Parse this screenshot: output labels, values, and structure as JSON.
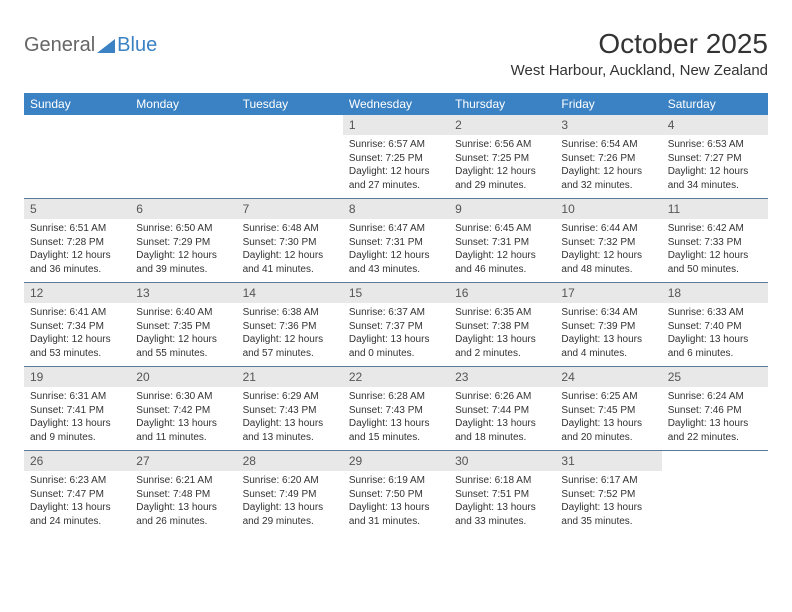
{
  "logo": {
    "general": "General",
    "blue": "Blue"
  },
  "title": "October 2025",
  "location": "West Harbour, Auckland, New Zealand",
  "colors": {
    "header_bg": "#3b82c4",
    "header_text": "#ffffff",
    "daynum_bg": "#e8e8e8",
    "body_text": "#333333",
    "logo_gray": "#666666",
    "logo_blue": "#3b82c4",
    "row_border": "#5a7a9a"
  },
  "day_headers": [
    "Sunday",
    "Monday",
    "Tuesday",
    "Wednesday",
    "Thursday",
    "Friday",
    "Saturday"
  ],
  "weeks": [
    [
      {
        "n": "",
        "sr": "",
        "ss": "",
        "dl": ""
      },
      {
        "n": "",
        "sr": "",
        "ss": "",
        "dl": ""
      },
      {
        "n": "",
        "sr": "",
        "ss": "",
        "dl": ""
      },
      {
        "n": "1",
        "sr": "6:57 AM",
        "ss": "7:25 PM",
        "dl": "12 hours and 27 minutes."
      },
      {
        "n": "2",
        "sr": "6:56 AM",
        "ss": "7:25 PM",
        "dl": "12 hours and 29 minutes."
      },
      {
        "n": "3",
        "sr": "6:54 AM",
        "ss": "7:26 PM",
        "dl": "12 hours and 32 minutes."
      },
      {
        "n": "4",
        "sr": "6:53 AM",
        "ss": "7:27 PM",
        "dl": "12 hours and 34 minutes."
      }
    ],
    [
      {
        "n": "5",
        "sr": "6:51 AM",
        "ss": "7:28 PM",
        "dl": "12 hours and 36 minutes."
      },
      {
        "n": "6",
        "sr": "6:50 AM",
        "ss": "7:29 PM",
        "dl": "12 hours and 39 minutes."
      },
      {
        "n": "7",
        "sr": "6:48 AM",
        "ss": "7:30 PM",
        "dl": "12 hours and 41 minutes."
      },
      {
        "n": "8",
        "sr": "6:47 AM",
        "ss": "7:31 PM",
        "dl": "12 hours and 43 minutes."
      },
      {
        "n": "9",
        "sr": "6:45 AM",
        "ss": "7:31 PM",
        "dl": "12 hours and 46 minutes."
      },
      {
        "n": "10",
        "sr": "6:44 AM",
        "ss": "7:32 PM",
        "dl": "12 hours and 48 minutes."
      },
      {
        "n": "11",
        "sr": "6:42 AM",
        "ss": "7:33 PM",
        "dl": "12 hours and 50 minutes."
      }
    ],
    [
      {
        "n": "12",
        "sr": "6:41 AM",
        "ss": "7:34 PM",
        "dl": "12 hours and 53 minutes."
      },
      {
        "n": "13",
        "sr": "6:40 AM",
        "ss": "7:35 PM",
        "dl": "12 hours and 55 minutes."
      },
      {
        "n": "14",
        "sr": "6:38 AM",
        "ss": "7:36 PM",
        "dl": "12 hours and 57 minutes."
      },
      {
        "n": "15",
        "sr": "6:37 AM",
        "ss": "7:37 PM",
        "dl": "13 hours and 0 minutes."
      },
      {
        "n": "16",
        "sr": "6:35 AM",
        "ss": "7:38 PM",
        "dl": "13 hours and 2 minutes."
      },
      {
        "n": "17",
        "sr": "6:34 AM",
        "ss": "7:39 PM",
        "dl": "13 hours and 4 minutes."
      },
      {
        "n": "18",
        "sr": "6:33 AM",
        "ss": "7:40 PM",
        "dl": "13 hours and 6 minutes."
      }
    ],
    [
      {
        "n": "19",
        "sr": "6:31 AM",
        "ss": "7:41 PM",
        "dl": "13 hours and 9 minutes."
      },
      {
        "n": "20",
        "sr": "6:30 AM",
        "ss": "7:42 PM",
        "dl": "13 hours and 11 minutes."
      },
      {
        "n": "21",
        "sr": "6:29 AM",
        "ss": "7:43 PM",
        "dl": "13 hours and 13 minutes."
      },
      {
        "n": "22",
        "sr": "6:28 AM",
        "ss": "7:43 PM",
        "dl": "13 hours and 15 minutes."
      },
      {
        "n": "23",
        "sr": "6:26 AM",
        "ss": "7:44 PM",
        "dl": "13 hours and 18 minutes."
      },
      {
        "n": "24",
        "sr": "6:25 AM",
        "ss": "7:45 PM",
        "dl": "13 hours and 20 minutes."
      },
      {
        "n": "25",
        "sr": "6:24 AM",
        "ss": "7:46 PM",
        "dl": "13 hours and 22 minutes."
      }
    ],
    [
      {
        "n": "26",
        "sr": "6:23 AM",
        "ss": "7:47 PM",
        "dl": "13 hours and 24 minutes."
      },
      {
        "n": "27",
        "sr": "6:21 AM",
        "ss": "7:48 PM",
        "dl": "13 hours and 26 minutes."
      },
      {
        "n": "28",
        "sr": "6:20 AM",
        "ss": "7:49 PM",
        "dl": "13 hours and 29 minutes."
      },
      {
        "n": "29",
        "sr": "6:19 AM",
        "ss": "7:50 PM",
        "dl": "13 hours and 31 minutes."
      },
      {
        "n": "30",
        "sr": "6:18 AM",
        "ss": "7:51 PM",
        "dl": "13 hours and 33 minutes."
      },
      {
        "n": "31",
        "sr": "6:17 AM",
        "ss": "7:52 PM",
        "dl": "13 hours and 35 minutes."
      },
      {
        "n": "",
        "sr": "",
        "ss": "",
        "dl": ""
      }
    ]
  ],
  "labels": {
    "sunrise": "Sunrise:",
    "sunset": "Sunset:",
    "daylight": "Daylight:"
  }
}
